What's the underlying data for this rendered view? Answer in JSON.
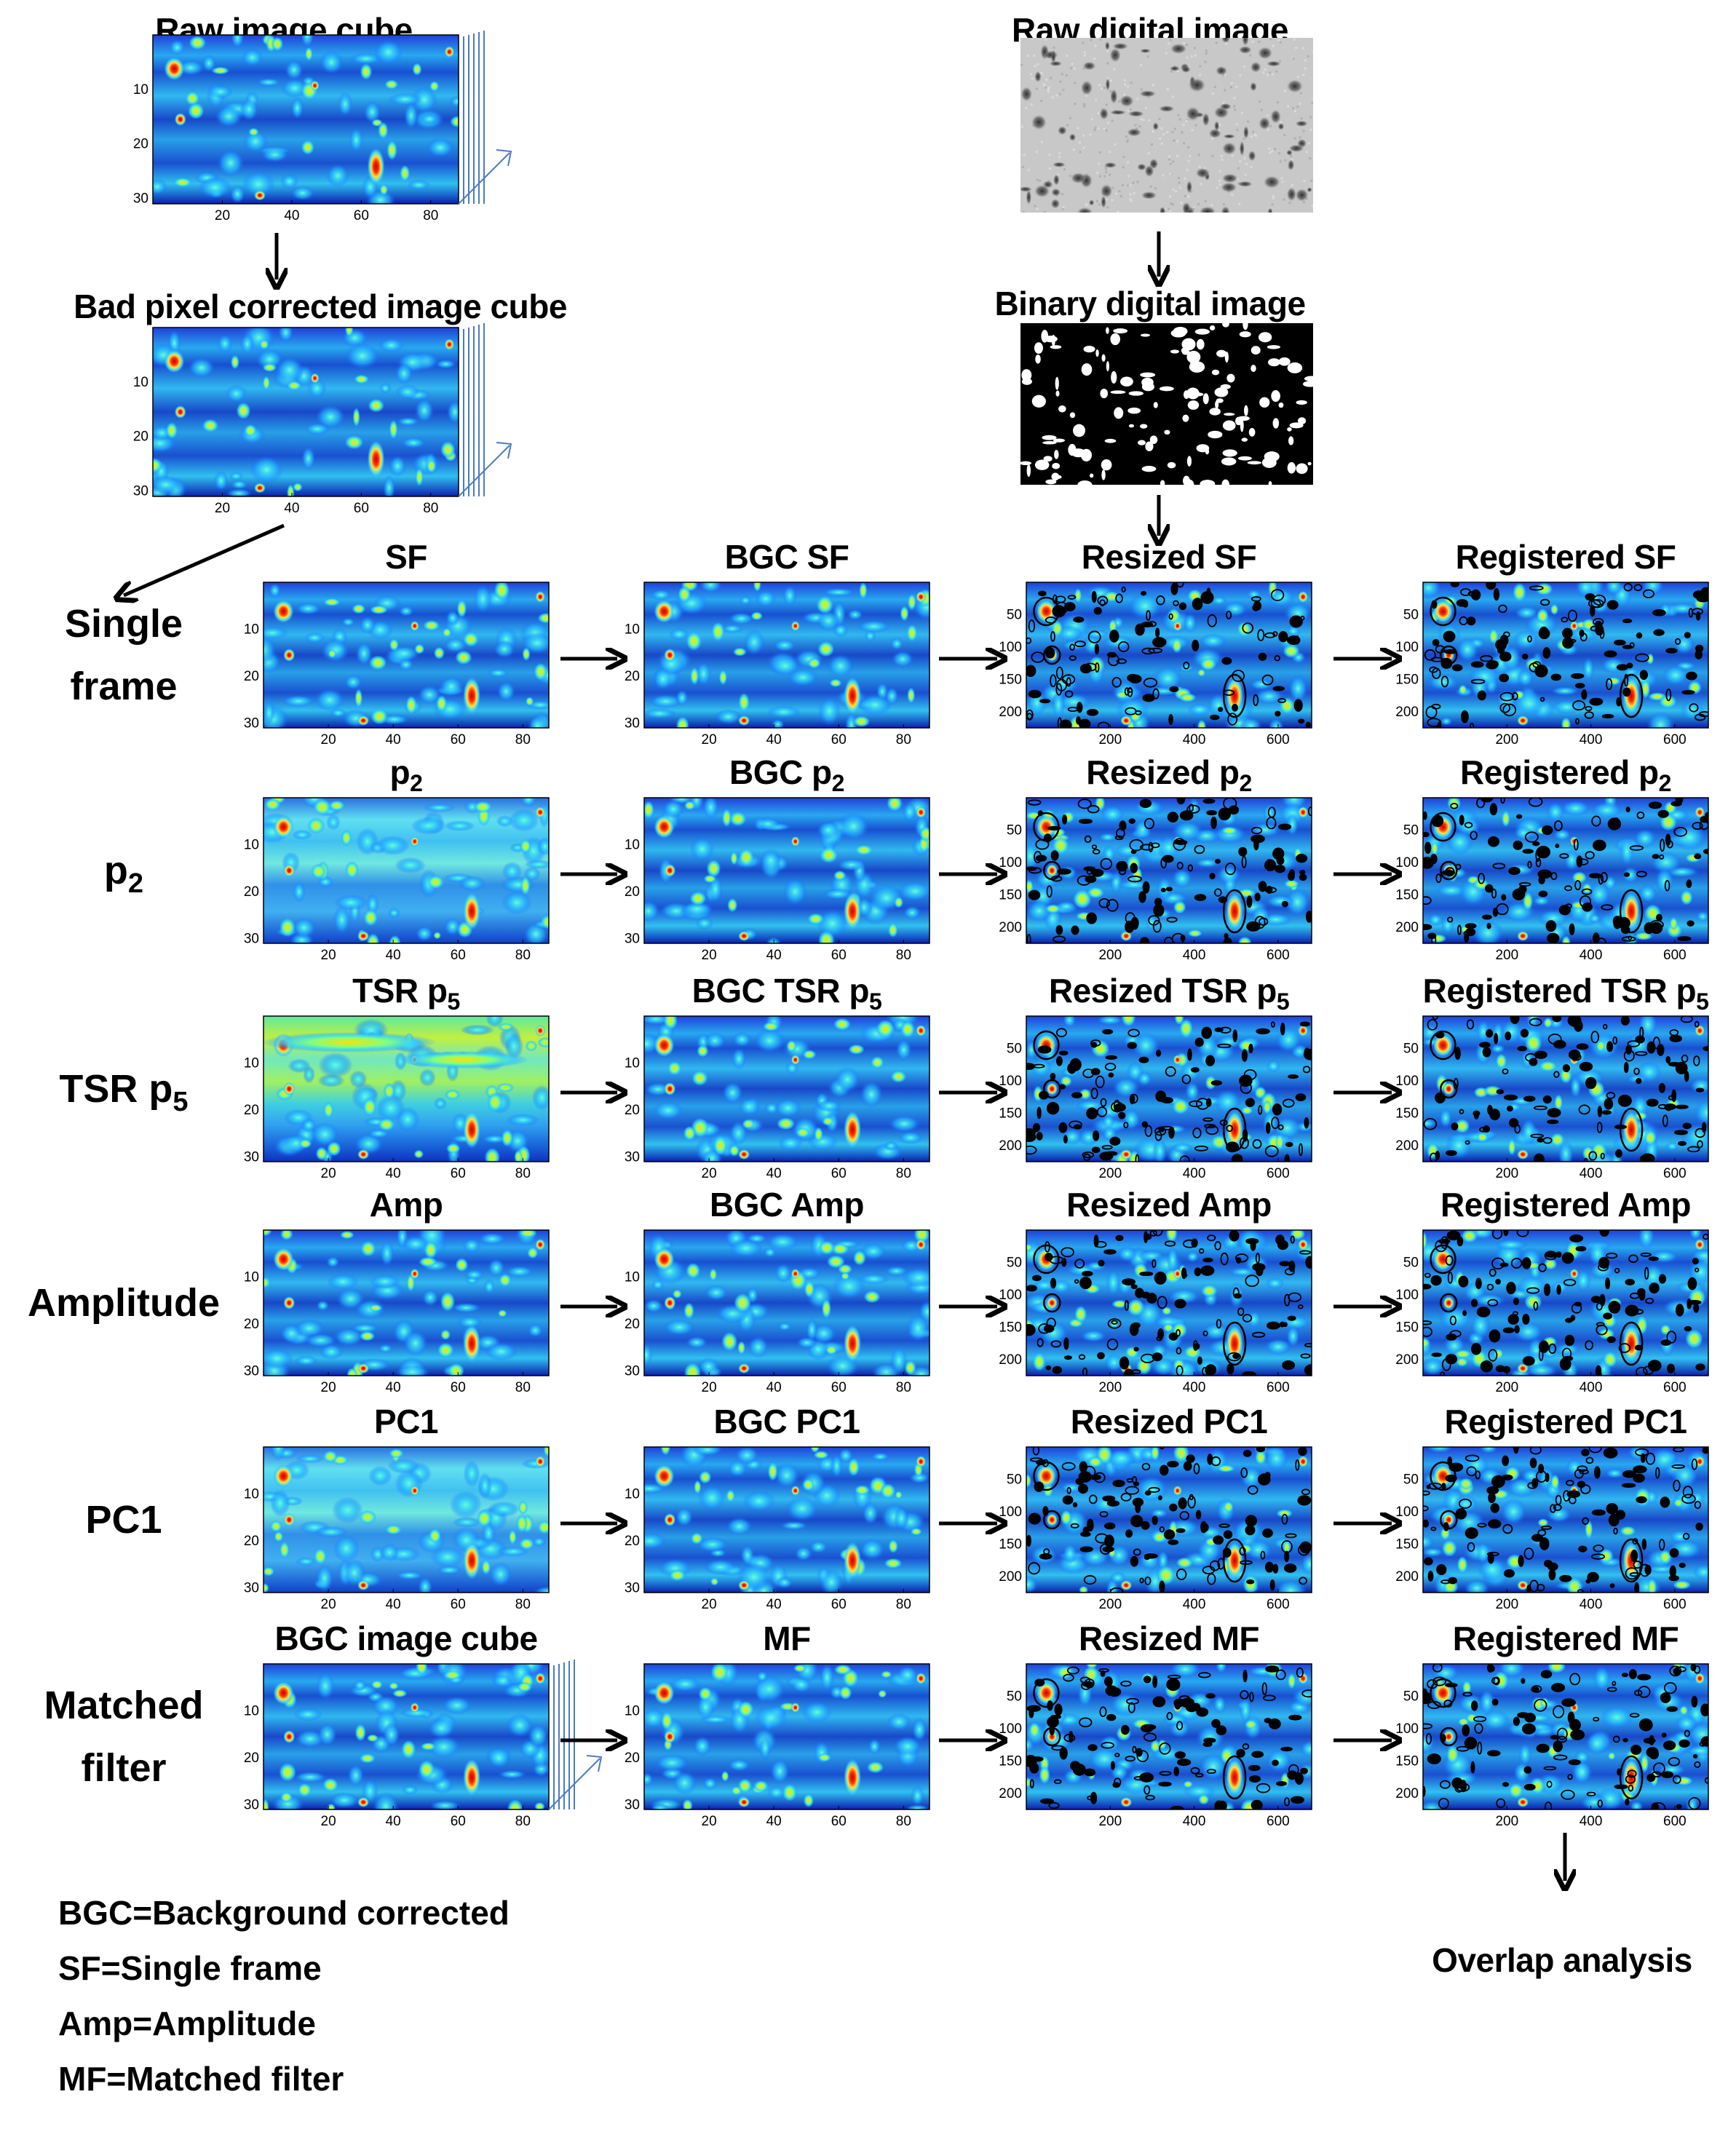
{
  "pipeline_left": {
    "raw_cube_title": "Raw image cube",
    "bad_pixel_title": "Bad pixel corrected image cube"
  },
  "pipeline_right": {
    "raw_digital_title": "Raw digital image",
    "binary_digital_title": "Binary digital image"
  },
  "rows": [
    {
      "label_lines": [
        "Single",
        "frame"
      ],
      "label_sub": "",
      "col1": "SF",
      "col2": "BGC SF",
      "col3": "Resized SF",
      "col4": "Registered SF",
      "sub": ""
    },
    {
      "label_lines": [
        "p"
      ],
      "label_sub": "2",
      "col1": "p",
      "col2": "BGC p",
      "col3": "Resized p",
      "col4": "Registered p",
      "sub": "2"
    },
    {
      "label_lines": [
        "TSR p"
      ],
      "label_sub": "5",
      "col1": "TSR p",
      "col2": "BGC TSR p",
      "col3": "Resized TSR p",
      "col4": "Registered TSR p",
      "sub": "5"
    },
    {
      "label_lines": [
        "Amplitude"
      ],
      "label_sub": "",
      "col1": "Amp",
      "col2": "BGC Amp",
      "col3": "Resized Amp",
      "col4": "Registered Amp",
      "sub": ""
    },
    {
      "label_lines": [
        "PC1"
      ],
      "label_sub": "",
      "col1": "PC1",
      "col2": "BGC PC1",
      "col3": "Resized PC1",
      "col4": "Registered PC1",
      "sub": ""
    },
    {
      "label_lines": [
        "Matched",
        "filter"
      ],
      "label_sub": "",
      "col1": "BGC image cube",
      "col2": "MF",
      "col3": "Resized MF",
      "col4": "Registered MF",
      "sub": ""
    }
  ],
  "axes_small": {
    "x_ticks": [
      "20",
      "40",
      "60",
      "80"
    ],
    "y_ticks": [
      "10",
      "20",
      "30"
    ]
  },
  "axes_large": {
    "x_ticks": [
      "200",
      "400",
      "600"
    ],
    "y_ticks": [
      "50",
      "100",
      "150",
      "200"
    ]
  },
  "overlap_label": "Overlap analysis",
  "legend": [
    "BGC=Background corrected",
    "SF=Single frame",
    "Amp=Amplitude",
    "MF=Matched filter"
  ],
  "colors": {
    "heat_low": "#1028c8",
    "heat_mid": "#20c8f0",
    "heat_high": "#e01010"
  }
}
